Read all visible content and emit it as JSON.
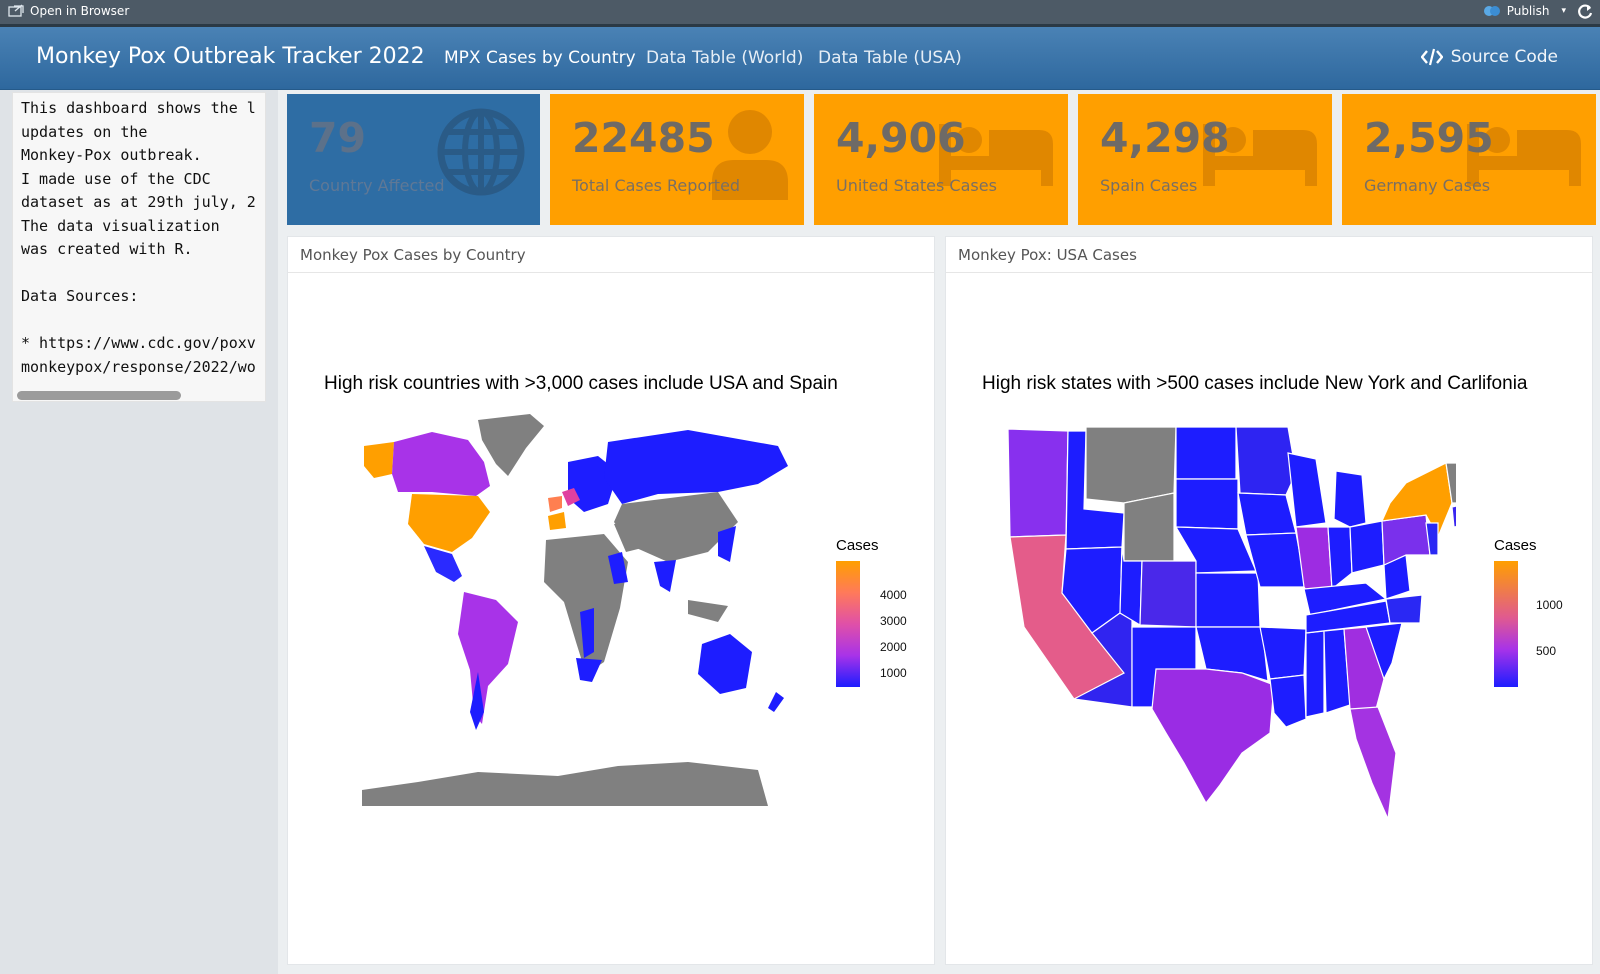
{
  "viewer": {
    "open_in_browser": "Open in Browser",
    "publish": "Publish"
  },
  "navbar": {
    "title": "Monkey Pox Outbreak Tracker 2022",
    "tabs": [
      "MPX Cases by Country",
      "Data Table (World)",
      "Data Table (USA)"
    ],
    "active_tab": 0,
    "source_code": "Source Code"
  },
  "sidebar": {
    "text": "This dashboard shows the l\nupdates on the\nMonkey-Pox outbreak.\nI made use of the CDC\ndataset as at 29th july, 2\nThe data visualization\nwas created with R.\n\nData Sources:\n\n* https://www.cdc.gov/poxv\nmonkeypox/response/2022/wo"
  },
  "value_boxes": [
    {
      "value": "79",
      "caption": "Country Affected",
      "color": "#2e6da4",
      "icon": "globe-icon"
    },
    {
      "value": "22485",
      "caption": "Total Cases Reported",
      "color": "#ff9f00",
      "icon": "user-icon"
    },
    {
      "value": "4,906",
      "caption": "United States Cases",
      "color": "#ff9f00",
      "icon": "bed-icon"
    },
    {
      "value": "4,298",
      "caption": "Spain Cases",
      "color": "#ff9f00",
      "icon": "bed-icon"
    },
    {
      "value": "2,595",
      "caption": "Germany Cases",
      "color": "#ff9f00",
      "icon": "bed-icon"
    }
  ],
  "cards": {
    "world": {
      "header": "Monkey Pox Cases by Country",
      "plot_title": "High risk countries with >3,000 cases include USA and Spain",
      "legend_title": "Cases",
      "legend_ticks": [
        "4000",
        "3000",
        "2000",
        "1000"
      ]
    },
    "usa": {
      "header": "Monkey Pox: USA Cases",
      "plot_title": "High risk states with >500 cases include New York and Carlifonia",
      "legend_title": "Cases",
      "legend_ticks": [
        "1000",
        "500"
      ]
    }
  },
  "colors": {
    "accent_blue": "#2e6da4",
    "accent_orange": "#ff9f00",
    "scale_low": "#1d1dff",
    "scale_mid": "#a833e8",
    "scale_high": "#ff9f00",
    "no_data": "#808080"
  },
  "chart_data": [
    {
      "type": "heatmap",
      "title": "High risk countries with >3,000 cases include USA and Spain",
      "legend": {
        "title": "Cases",
        "breaks": [
          1000,
          2000,
          3000,
          4000
        ],
        "range": [
          0,
          4906
        ]
      },
      "values": {
        "United States": 4906,
        "Spain": 4298,
        "Germany": 2595
      },
      "no_data_color": "#808080"
    },
    {
      "type": "heatmap",
      "title": "High risk states with >500 cases include New York and Carlifonia",
      "legend": {
        "title": "Cases",
        "breaks": [
          500,
          1000
        ],
        "range": [
          0,
          1300
        ]
      },
      "values": {},
      "no_data_color": "#808080"
    }
  ]
}
